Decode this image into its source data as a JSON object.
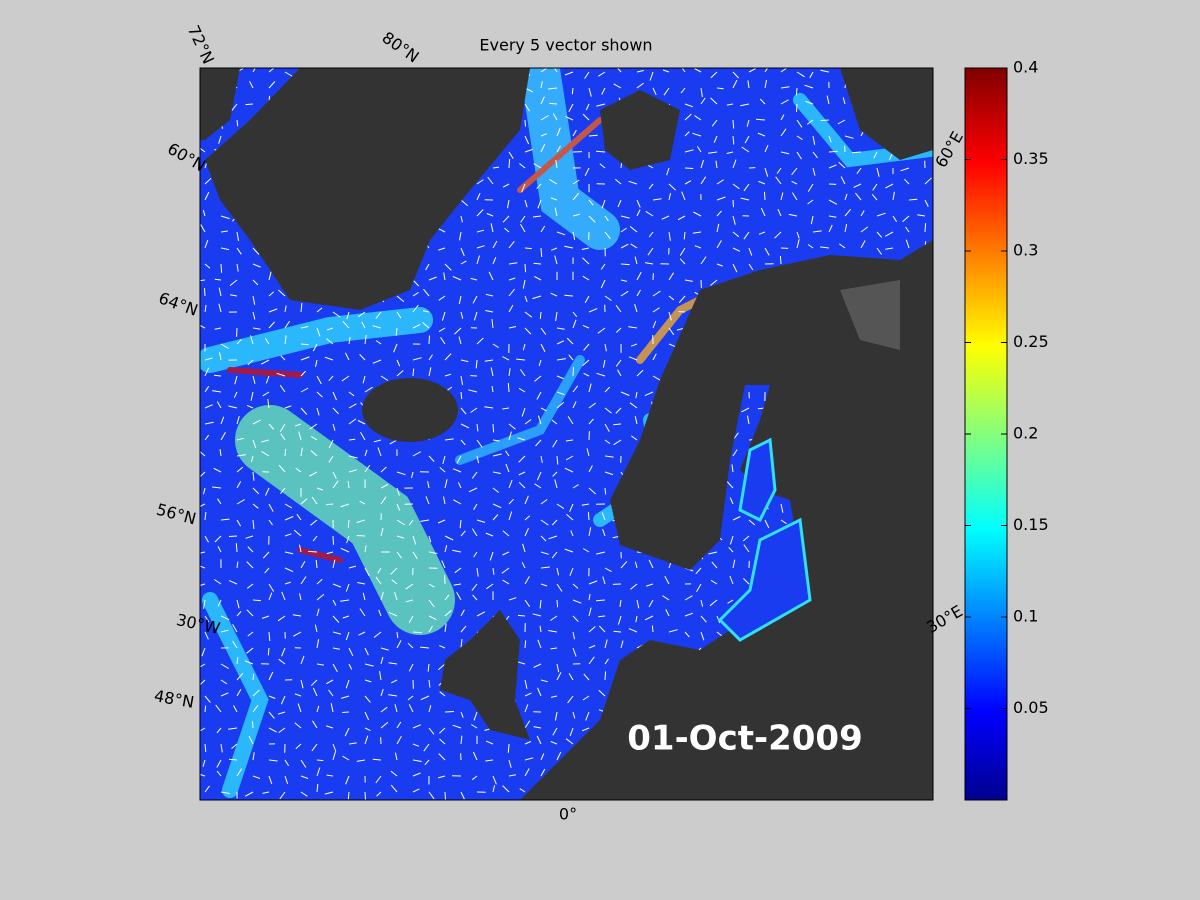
{
  "map": {
    "title": "Every 5 vector shown",
    "date_label": "01-Oct-2009",
    "lat_labels": [
      "72°N",
      "80°N",
      "60°N",
      "64°N",
      "56°N",
      "48°N"
    ],
    "lon_labels": [
      "30°W",
      "0°",
      "30°E",
      "60°E"
    ],
    "colorbar": {
      "ylim": [
        0,
        0.4
      ],
      "yticks": [
        0.05,
        0.1,
        0.15,
        0.2,
        0.25,
        0.3,
        0.35,
        0.4
      ]
    }
  }
}
